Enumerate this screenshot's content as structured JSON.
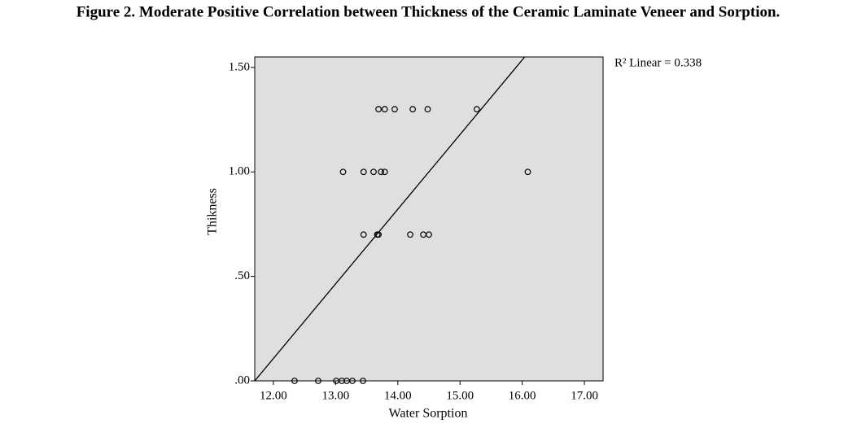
{
  "chart_data": {
    "type": "scatter",
    "title": "Figure 2. Moderate Positive Correlation between Thickness of the Ceramic Laminate Veneer and Sorption.",
    "x_label": "Water Sorption",
    "y_label": "Thikness",
    "annotation": "R² Linear = 0.338",
    "x": [
      12.34,
      12.72,
      13.01,
      13.1,
      13.18,
      13.27,
      13.44,
      13.45,
      13.67,
      13.69,
      14.2,
      14.41,
      14.5,
      13.12,
      13.45,
      13.61,
      13.73,
      13.79,
      13.69,
      13.79,
      13.95,
      14.24,
      14.48,
      15.27,
      16.09
    ],
    "values": [
      0,
      0,
      0,
      0,
      0,
      0,
      0,
      0.7,
      0.7,
      0.7,
      0.7,
      0.7,
      0.7,
      1.0,
      1.0,
      1.0,
      1.0,
      1.0,
      1.3,
      1.3,
      1.3,
      1.3,
      1.3,
      1.3,
      1.0
    ],
    "fit_line": {
      "x": [
        11.7,
        16.04
      ],
      "y": [
        0,
        1.55
      ]
    },
    "color": "#000000",
    "background": "#dfdfdf",
    "xlim": [
      11.7,
      17.3
    ],
    "ylim": [
      0,
      1.55
    ],
    "xticks": [
      {
        "value": 12,
        "label": "12.00"
      },
      {
        "value": 13,
        "label": "13.00"
      },
      {
        "value": 14,
        "label": "14.00"
      },
      {
        "value": 15,
        "label": "15.00"
      },
      {
        "value": 16,
        "label": "16.00"
      },
      {
        "value": 17,
        "label": "17.00"
      }
    ],
    "yticks": [
      {
        "value": 0,
        "label": ".00"
      },
      {
        "value": 0.5,
        "label": ".50"
      },
      {
        "value": 1.0,
        "label": "1.00"
      },
      {
        "value": 1.5,
        "label": "1.50"
      }
    ]
  }
}
